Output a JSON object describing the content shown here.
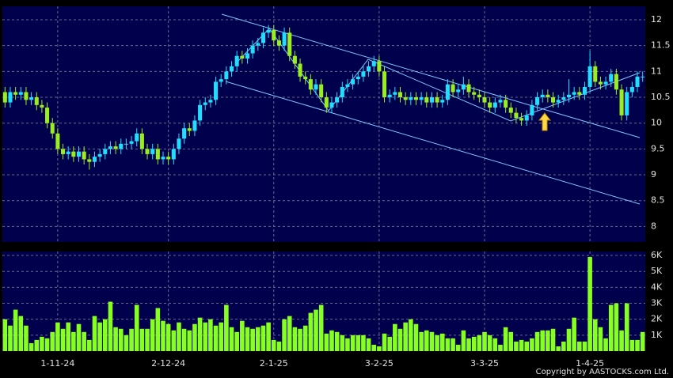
{
  "chart_data": [
    {
      "type": "candlestick",
      "up_color": "#22ddff",
      "down_color": "#99ee22",
      "grid": true,
      "ylim": [
        7.7,
        12.26
      ],
      "yticks": [
        8,
        8.5,
        9,
        9.5,
        10,
        10.5,
        11,
        11.5,
        12
      ],
      "open": [
        10.6,
        10.4,
        10.6,
        10.55,
        10.6,
        10.45,
        10.5,
        10.35,
        10.3,
        10.0,
        9.8,
        9.5,
        9.4,
        9.45,
        9.35,
        9.45,
        9.3,
        9.25,
        9.35,
        9.4,
        9.5,
        9.55,
        9.5,
        9.6,
        9.6,
        9.65,
        9.8,
        9.5,
        9.4,
        9.5,
        9.3,
        9.35,
        9.3,
        9.5,
        9.7,
        9.9,
        9.85,
        10.05,
        10.35,
        10.4,
        10.45,
        10.8,
        10.85,
        11.0,
        11.1,
        11.3,
        11.25,
        11.35,
        11.5,
        11.55,
        11.75,
        11.8,
        11.6,
        11.5,
        11.75,
        11.3,
        11.15,
        10.9,
        10.85,
        10.65,
        10.75,
        10.5,
        10.3,
        10.4,
        10.5,
        10.7,
        10.75,
        10.85,
        10.9,
        11.0,
        11.1,
        11.2,
        11.0,
        10.5,
        10.55,
        10.6,
        10.5,
        10.45,
        10.5,
        10.45,
        10.5,
        10.4,
        10.5,
        10.4,
        10.45,
        10.75,
        10.6,
        10.65,
        10.75,
        10.6,
        10.55,
        10.5,
        10.4,
        10.3,
        10.4,
        10.45,
        10.3,
        10.2,
        10.1,
        10.05,
        10.15,
        10.35,
        10.5,
        10.55,
        10.5,
        10.4,
        10.45,
        10.5,
        10.55,
        10.6,
        10.55,
        10.7,
        11.1,
        10.8,
        10.75,
        10.8,
        10.95,
        10.65,
        10.15,
        10.6,
        10.7,
        10.9
      ],
      "high": [
        10.7,
        10.7,
        10.7,
        10.7,
        10.7,
        10.6,
        10.6,
        10.45,
        10.4,
        10.1,
        9.9,
        9.6,
        9.55,
        9.55,
        9.55,
        9.55,
        9.4,
        9.45,
        9.5,
        9.6,
        9.65,
        9.65,
        9.7,
        9.7,
        9.75,
        9.9,
        9.9,
        9.6,
        9.6,
        9.6,
        9.45,
        9.45,
        9.6,
        9.8,
        10.0,
        10.0,
        10.15,
        10.45,
        10.5,
        10.55,
        10.9,
        10.95,
        11.1,
        11.2,
        11.4,
        11.4,
        11.45,
        11.6,
        11.65,
        11.85,
        11.9,
        11.9,
        11.7,
        11.85,
        11.85,
        11.4,
        11.25,
        11.0,
        10.95,
        10.85,
        10.85,
        10.6,
        10.5,
        10.6,
        10.8,
        10.85,
        10.95,
        11.0,
        11.1,
        11.2,
        11.3,
        11.3,
        11.1,
        10.65,
        10.7,
        10.7,
        10.6,
        10.6,
        10.6,
        10.6,
        10.6,
        10.6,
        10.6,
        10.55,
        10.85,
        10.85,
        10.75,
        10.9,
        10.85,
        10.7,
        10.65,
        10.6,
        10.5,
        10.5,
        10.55,
        10.55,
        10.4,
        10.3,
        10.2,
        10.25,
        10.45,
        10.6,
        10.65,
        10.65,
        10.6,
        10.55,
        10.6,
        10.85,
        10.7,
        10.7,
        10.8,
        11.4,
        11.2,
        10.9,
        10.9,
        11.05,
        11.05,
        10.75,
        10.7,
        10.8,
        11.0,
        11.0
      ],
      "low": [
        10.3,
        10.3,
        10.45,
        10.45,
        10.35,
        10.35,
        10.25,
        10.2,
        9.9,
        9.7,
        9.4,
        9.3,
        9.3,
        9.25,
        9.25,
        9.2,
        9.1,
        9.15,
        9.25,
        9.3,
        9.4,
        9.4,
        9.4,
        9.5,
        9.5,
        9.55,
        9.4,
        9.3,
        9.3,
        9.2,
        9.2,
        9.2,
        9.2,
        9.4,
        9.6,
        9.75,
        9.75,
        9.95,
        10.25,
        10.3,
        10.35,
        10.7,
        10.75,
        10.9,
        11.0,
        11.15,
        11.15,
        11.25,
        11.4,
        11.45,
        11.65,
        11.5,
        11.4,
        11.4,
        11.2,
        11.05,
        10.8,
        10.75,
        10.55,
        10.55,
        10.4,
        10.2,
        10.2,
        10.3,
        10.4,
        10.6,
        10.65,
        10.75,
        10.8,
        10.9,
        11.0,
        10.9,
        10.4,
        10.4,
        10.45,
        10.4,
        10.35,
        10.35,
        10.35,
        10.35,
        10.3,
        10.3,
        10.3,
        10.3,
        10.35,
        10.5,
        10.5,
        10.55,
        10.5,
        10.45,
        10.4,
        10.3,
        10.2,
        10.2,
        10.3,
        10.2,
        10.1,
        10.0,
        9.95,
        9.95,
        10.05,
        10.25,
        10.4,
        10.4,
        10.3,
        10.3,
        10.35,
        10.4,
        10.45,
        10.45,
        10.45,
        10.6,
        10.7,
        10.65,
        10.65,
        10.7,
        10.55,
        10.05,
        10.05,
        10.5,
        10.6,
        10.8
      ],
      "close": [
        10.4,
        10.6,
        10.55,
        10.6,
        10.45,
        10.5,
        10.35,
        10.3,
        10.0,
        9.8,
        9.5,
        9.4,
        9.45,
        9.35,
        9.45,
        9.3,
        9.25,
        9.35,
        9.4,
        9.5,
        9.55,
        9.5,
        9.6,
        9.6,
        9.65,
        9.8,
        9.5,
        9.4,
        9.5,
        9.3,
        9.35,
        9.3,
        9.5,
        9.7,
        9.9,
        9.85,
        10.05,
        10.35,
        10.4,
        10.45,
        10.8,
        10.85,
        11.0,
        11.1,
        11.3,
        11.25,
        11.35,
        11.5,
        11.55,
        11.75,
        11.8,
        11.6,
        11.5,
        11.75,
        11.3,
        11.15,
        10.9,
        10.85,
        10.65,
        10.75,
        10.5,
        10.3,
        10.4,
        10.5,
        10.7,
        10.75,
        10.85,
        10.9,
        11.0,
        11.1,
        11.2,
        11.0,
        10.5,
        10.55,
        10.6,
        10.5,
        10.45,
        10.5,
        10.45,
        10.5,
        10.4,
        10.5,
        10.4,
        10.45,
        10.75,
        10.6,
        10.65,
        10.75,
        10.6,
        10.55,
        10.5,
        10.4,
        10.3,
        10.4,
        10.45,
        10.3,
        10.2,
        10.1,
        10.05,
        10.15,
        10.35,
        10.5,
        10.55,
        10.5,
        10.4,
        10.45,
        10.5,
        10.55,
        10.6,
        10.55,
        10.7,
        11.1,
        10.8,
        10.75,
        10.8,
        10.95,
        10.65,
        10.15,
        10.6,
        10.7,
        10.9,
        10.9
      ]
    },
    {
      "type": "bar",
      "color": "#88ff22",
      "grid": true,
      "ylim": [
        0,
        6250
      ],
      "yticks": [
        {
          "value": 1000,
          "label": "1K"
        },
        {
          "value": 2000,
          "label": "2K"
        },
        {
          "value": 3000,
          "label": "3K"
        },
        {
          "value": 4000,
          "label": "4K"
        },
        {
          "value": 5000,
          "label": "5K"
        },
        {
          "value": 6000,
          "label": "6K"
        }
      ],
      "categories": [
        null,
        null,
        null,
        null,
        null,
        null,
        null,
        null,
        null,
        null,
        "1-11-24",
        null,
        null,
        null,
        null,
        null,
        null,
        null,
        null,
        null,
        null,
        null,
        null,
        null,
        null,
        null,
        null,
        null,
        null,
        null,
        null,
        "2-12-24",
        null,
        null,
        null,
        null,
        null,
        null,
        null,
        null,
        null,
        null,
        null,
        null,
        null,
        null,
        null,
        null,
        null,
        null,
        null,
        "2-1-25",
        null,
        null,
        null,
        null,
        null,
        null,
        null,
        null,
        null,
        null,
        null,
        null,
        null,
        null,
        null,
        null,
        null,
        null,
        null,
        "3-2-25",
        null,
        null,
        null,
        null,
        null,
        null,
        null,
        null,
        null,
        null,
        null,
        null,
        null,
        null,
        null,
        null,
        null,
        null,
        null,
        "3-3-25",
        null,
        null,
        null,
        null,
        null,
        null,
        null,
        null,
        null,
        null,
        null,
        null,
        null,
        null,
        null,
        null,
        null,
        null,
        null,
        "1-4-25",
        null,
        null,
        null,
        null,
        null,
        null,
        null,
        null,
        null,
        null
      ],
      "values": [
        2000,
        1600,
        2600,
        2200,
        1600,
        500,
        700,
        900,
        800,
        1200,
        1800,
        1400,
        1800,
        1200,
        1700,
        1200,
        700,
        2200,
        1800,
        2000,
        3100,
        1500,
        1400,
        1000,
        1400,
        2900,
        1400,
        1400,
        2000,
        2700,
        1900,
        1700,
        1300,
        1800,
        1400,
        1300,
        1700,
        2100,
        1800,
        2000,
        1600,
        1800,
        2900,
        1500,
        1200,
        1900,
        1500,
        1400,
        1500,
        1600,
        1800,
        700,
        600,
        2000,
        2200,
        1500,
        1400,
        1600,
        2400,
        2600,
        2900,
        1100,
        1300,
        1200,
        1000,
        800,
        1000,
        1000,
        1000,
        800,
        400,
        300,
        1100,
        900,
        1700,
        1400,
        1800,
        2000,
        1700,
        1200,
        1300,
        1200,
        1000,
        1100,
        800,
        800,
        400,
        1300,
        800,
        900,
        1000,
        1200,
        1000,
        800,
        400,
        1500,
        1200,
        600,
        700,
        600,
        800,
        1200,
        1300,
        1300,
        1400,
        300,
        600,
        1400,
        2100,
        600,
        600,
        5900,
        2000,
        1500,
        800,
        2900,
        3000,
        1300,
        3000,
        700,
        700,
        1200
      ]
    }
  ],
  "footer": "Copyright by AASTOCKS.com Ltd."
}
